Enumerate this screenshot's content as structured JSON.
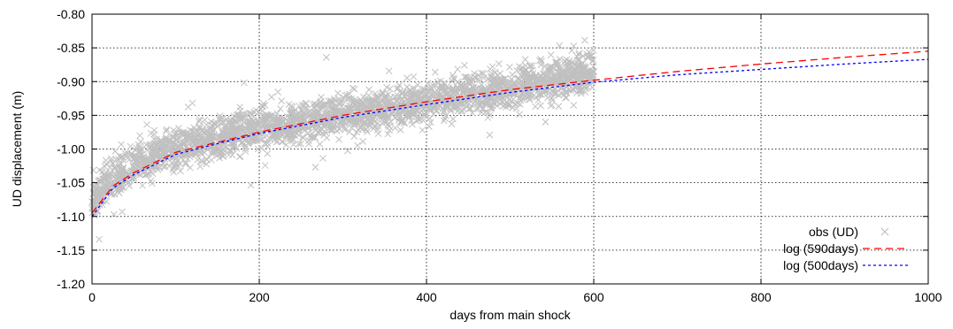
{
  "chart_data": {
    "type": "scatter",
    "title": "",
    "xlabel": "days from main shock",
    "ylabel": "UD displacement (m)",
    "xlim": [
      0,
      1000
    ],
    "ylim": [
      -1.2,
      -0.8
    ],
    "xticks": [
      0,
      200,
      400,
      600,
      800,
      1000
    ],
    "xtick_labels": [
      "0",
      "200",
      "400",
      "600",
      "800",
      "1000"
    ],
    "yticks": [
      -1.2,
      -1.15,
      -1.1,
      -1.05,
      -1.0,
      -0.95,
      -0.9,
      -0.85,
      -0.8
    ],
    "ytick_labels": [
      "-1.20",
      "-1.15",
      "-1.10",
      "-1.05",
      "-1.00",
      "-0.95",
      "-0.90",
      "-0.85",
      "-0.80"
    ],
    "grid": true,
    "legend_position": "bottom-right",
    "observations": {
      "name": "obs (UD)",
      "color": "#c0c0c0",
      "marker": "x",
      "x_range": [
        0,
        600
      ],
      "points": [
        [
          0,
          -1.08
        ],
        [
          5,
          -1.07
        ],
        [
          10,
          -1.06
        ],
        [
          20,
          -1.05
        ],
        [
          30,
          -1.04
        ],
        [
          50,
          -1.025
        ],
        [
          75,
          -1.01
        ],
        [
          100,
          -1.0
        ],
        [
          125,
          -0.99
        ],
        [
          150,
          -0.985
        ],
        [
          175,
          -0.975
        ],
        [
          200,
          -0.97
        ],
        [
          250,
          -0.96
        ],
        [
          300,
          -0.95
        ],
        [
          350,
          -0.94
        ],
        [
          400,
          -0.93
        ],
        [
          450,
          -0.92
        ],
        [
          500,
          -0.91
        ],
        [
          550,
          -0.895
        ],
        [
          600,
          -0.885
        ]
      ],
      "scatter_std": 0.015,
      "samples_per_day": 6
    },
    "series": [
      {
        "name": "log (590days)",
        "color": "#ff0000",
        "dash": "8 5",
        "x": [
          0,
          25,
          50,
          100,
          150,
          200,
          300,
          400,
          500,
          600,
          700,
          800,
          900,
          1000
        ],
        "values": [
          -1.095,
          -1.055,
          -1.035,
          -1.005,
          -0.99,
          -0.975,
          -0.95,
          -0.93,
          -0.912,
          -0.898,
          -0.885,
          -0.874,
          -0.864,
          -0.855
        ]
      },
      {
        "name": "log (500days)",
        "color": "#0000ff",
        "dash": "3 3",
        "x": [
          0,
          25,
          50,
          100,
          150,
          200,
          300,
          400,
          500,
          600,
          700,
          800,
          900,
          1000
        ],
        "values": [
          -1.1,
          -1.058,
          -1.038,
          -1.008,
          -0.992,
          -0.977,
          -0.953,
          -0.934,
          -0.916,
          -0.901,
          -0.89,
          -0.882,
          -0.874,
          -0.867
        ]
      }
    ]
  }
}
